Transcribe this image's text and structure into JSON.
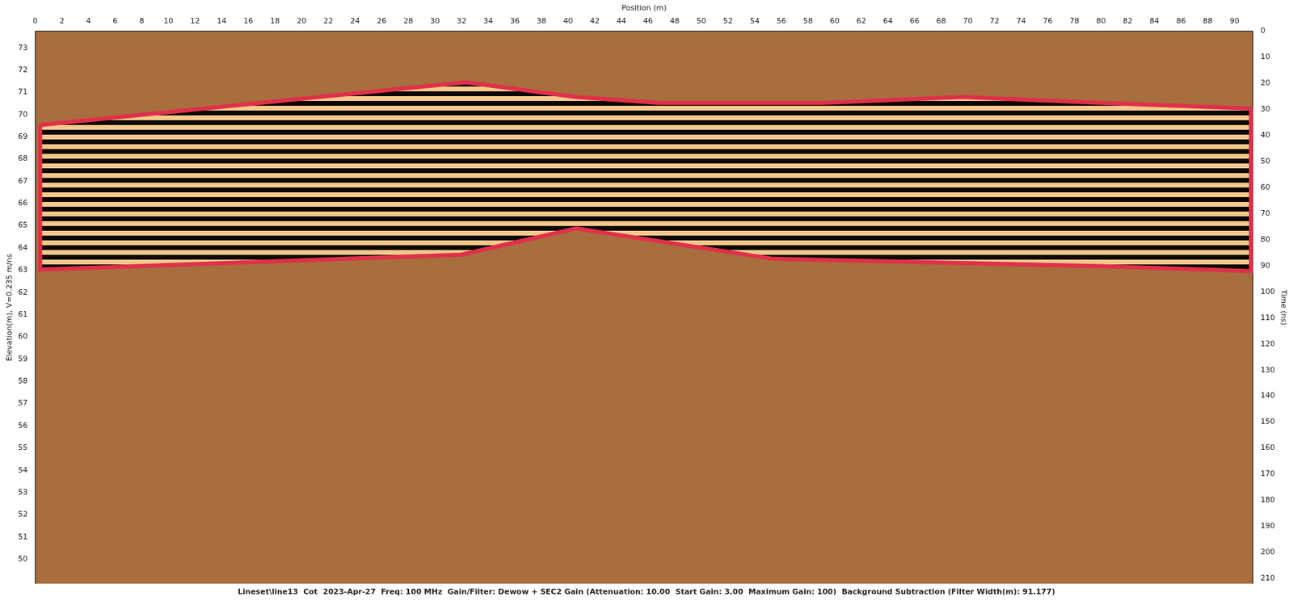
{
  "chart_data": {
    "type": "scatter",
    "title": "Lineset\\line13  Cot  2023-Apr-27  Freq: 100 MHz  Gain/Filter: Dewow + SEC2 Gain (Attenuation: 10.00  Start Gain: 3.00  Maximum Gain: 100)  Background Subtraction (Filter Width(m): 91.177)",
    "x_label": "Position (m)",
    "y_label": "Elevation(m), V=0.235 m/ns",
    "y2_label": "Time (ns)",
    "x": [
      0.37,
      32.3,
      40.6,
      46.8,
      59.1,
      69.6,
      80.0,
      91.25,
      91.25,
      80.0,
      55.4,
      40.6,
      32.0,
      0.37,
      0.37
    ],
    "series": [
      {
        "color": "#e0304a",
        "line_style": "solid",
        "marker": "none",
        "values": [
          69.53,
          71.45,
          70.79,
          70.53,
          70.53,
          70.79,
          70.53,
          70.27,
          62.96,
          63.18,
          63.51,
          64.88,
          63.7,
          63.03,
          69.53
        ]
      }
    ],
    "xlim": [
      0,
      91.4
    ],
    "xticks": [
      0,
      2,
      4,
      6,
      8,
      10,
      12,
      14,
      16,
      18,
      20,
      22,
      24,
      26,
      28,
      30,
      32,
      34,
      36,
      38,
      40,
      42,
      44,
      46,
      48,
      50,
      52,
      54,
      56,
      58,
      60,
      62,
      64,
      66,
      68,
      70,
      72,
      74,
      76,
      78,
      80,
      82,
      84,
      86,
      88,
      90
    ],
    "ylim": [
      48.9,
      73.75
    ],
    "yticks": [
      50,
      51,
      52,
      53,
      54,
      55,
      56,
      57,
      58,
      59,
      60,
      61,
      62,
      63,
      64,
      65,
      66,
      67,
      68,
      69,
      70,
      71,
      72,
      73
    ],
    "y2lim": [
      212,
      0
    ],
    "y2ticks": [
      0,
      10,
      20,
      30,
      40,
      50,
      60,
      70,
      80,
      90,
      100,
      110,
      120,
      130,
      140,
      150,
      160,
      170,
      180,
      190,
      200,
      210
    ],
    "grid": false
  }
}
